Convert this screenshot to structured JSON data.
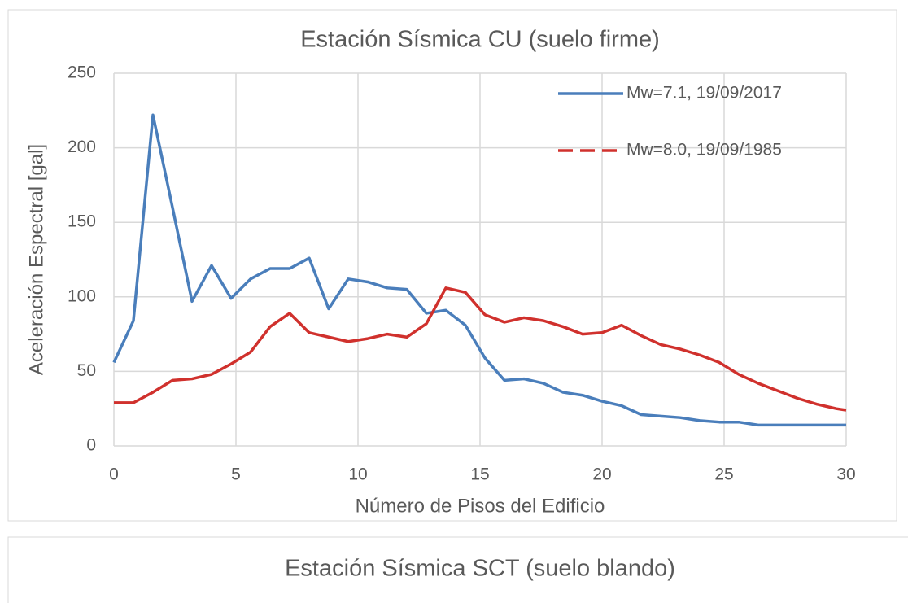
{
  "chart_data": [
    {
      "type": "line",
      "title": "Estación Sísmica CU (suelo firme)",
      "xlabel": "Número de Pisos del Edificio",
      "ylabel": "Aceleración Espectral [gal]",
      "x": [
        0,
        0.8,
        1.6,
        2.4,
        3.2,
        4,
        4.8,
        5.6,
        6.4,
        7.2,
        8,
        8.8,
        9.6,
        10.4,
        11.2,
        12,
        12.8,
        13.6,
        14.4,
        15.2,
        16,
        16.8,
        17.6,
        18.4,
        19.2,
        20,
        20.8,
        21.6,
        22.4,
        23.2,
        24,
        24.8,
        25.6,
        26.4,
        27.2,
        28,
        28.8,
        29.6,
        30
      ],
      "series": [
        {
          "name": "Mw=7.1, 19/09/2017",
          "color": "#4a7ebb",
          "values": [
            56,
            84,
            222,
            160,
            97,
            121,
            99,
            112,
            119,
            119,
            126,
            92,
            112,
            110,
            106,
            105,
            89,
            91,
            81,
            59,
            44,
            45,
            42,
            36,
            34,
            30,
            27,
            21,
            20,
            19,
            17,
            16,
            16,
            14,
            14,
            14,
            14,
            14,
            14
          ]
        },
        {
          "name": "Mw=8.0, 19/09/1985",
          "color": "#d0312d",
          "values": [
            29,
            29,
            36,
            44,
            45,
            48,
            55,
            63,
            80,
            89,
            76,
            73,
            70,
            72,
            75,
            73,
            82,
            106,
            103,
            88,
            83,
            86,
            84,
            80,
            75,
            76,
            81,
            74,
            68,
            65,
            61,
            56,
            48,
            42,
            37,
            32,
            28,
            25,
            24
          ]
        }
      ],
      "xlim": [
        0,
        30
      ],
      "xticks": [
        0,
        5,
        10,
        15,
        20,
        25,
        30
      ],
      "ylim": [
        0,
        250
      ],
      "yticks": [
        0,
        50,
        100,
        150,
        200,
        250
      ],
      "grid": true,
      "legend": "upper right"
    },
    {
      "type": "line",
      "title": "Estación Sísmica SCT (suelo blando)"
    }
  ]
}
